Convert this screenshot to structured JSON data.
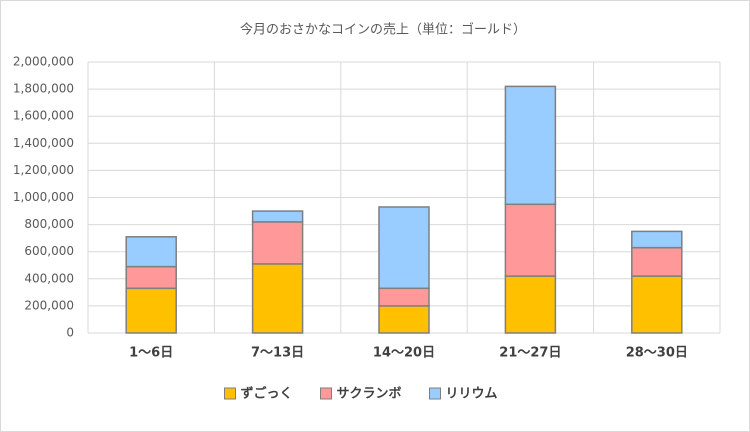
{
  "chart_data": {
    "type": "stacked-bar",
    "title": "今月のおさかなコインの売上（単位：ゴールド）",
    "categories": [
      "1〜6日",
      "7〜13日",
      "14〜20日",
      "21〜27日",
      "28〜30日"
    ],
    "series": [
      {
        "name": "ずごっく",
        "color": "#ffc000",
        "values": [
          330000,
          510000,
          200000,
          420000,
          420000
        ]
      },
      {
        "name": "サクランボ",
        "color": "#ff9999",
        "values": [
          160000,
          310000,
          130000,
          530000,
          210000
        ]
      },
      {
        "name": "リリウム",
        "color": "#99ccff",
        "values": [
          220000,
          80000,
          600000,
          870000,
          120000
        ]
      }
    ],
    "ylim": [
      0,
      2000000
    ],
    "yticks": [
      0,
      {
        "value": 200000,
        "label": "200,000"
      },
      {
        "value": 400000,
        "label": "400,000"
      },
      {
        "value": 600000,
        "label": "600,000"
      },
      {
        "value": 800000,
        "label": "800,000"
      },
      {
        "value": 1000000,
        "label": "1,000,000"
      },
      {
        "value": 1200000,
        "label": "1,200,000"
      },
      {
        "value": 1400000,
        "label": "1,400,000"
      },
      {
        "value": 1600000,
        "label": "1,600,000"
      },
      {
        "value": 1800000,
        "label": "1,800,000"
      },
      {
        "value": 2000000,
        "label": "2,000,000"
      }
    ],
    "grid": true,
    "legend": "bottom"
  }
}
